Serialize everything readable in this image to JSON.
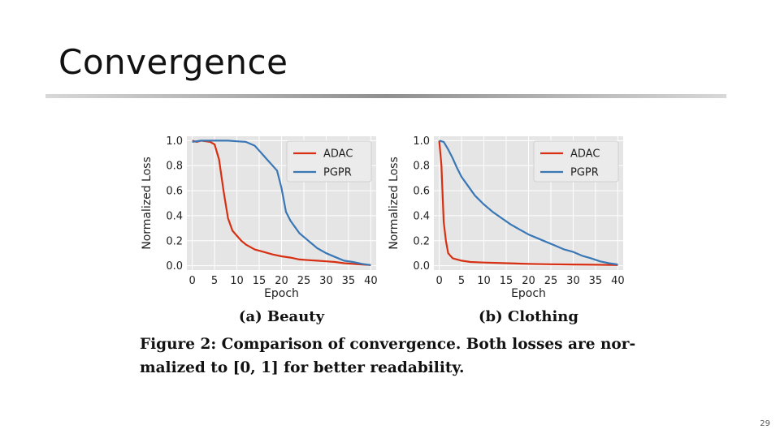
{
  "slide": {
    "title": "Convergence",
    "page_number": "29"
  },
  "caption": {
    "line1": "Figure 2: Comparison of convergence. Both losses are nor-",
    "line2": "malized to [0, 1] for better readability."
  },
  "colors": {
    "adac": "#d62f12",
    "pgpr": "#3a77b5"
  },
  "chart_data": [
    {
      "type": "line",
      "subcaption": "(a) Beauty",
      "xlabel": "Epoch",
      "ylabel": "Normalized Loss",
      "xlim": [
        0,
        40
      ],
      "ylim": [
        0,
        1.0
      ],
      "xticks": [
        "0",
        "5",
        "10",
        "15",
        "20",
        "25",
        "30",
        "35",
        "40"
      ],
      "yticks": [
        "0.0",
        "0.2",
        "0.4",
        "0.6",
        "0.8",
        "1.0"
      ],
      "grid": true,
      "legend": "top-right",
      "series": [
        {
          "name": "ADAC",
          "x": [
            0,
            1,
            2,
            3,
            4,
            5,
            6,
            7,
            8,
            9,
            10,
            11,
            12,
            14,
            16,
            18,
            20,
            22,
            24,
            26,
            28,
            30,
            32,
            34,
            36,
            38,
            40
          ],
          "y": [
            1.0,
            0.99,
            1.0,
            0.995,
            0.99,
            0.97,
            0.85,
            0.6,
            0.38,
            0.28,
            0.24,
            0.2,
            0.17,
            0.13,
            0.11,
            0.09,
            0.075,
            0.065,
            0.05,
            0.045,
            0.04,
            0.035,
            0.03,
            0.02,
            0.015,
            0.01,
            0.005
          ]
        },
        {
          "name": "PGPR",
          "x": [
            0,
            2,
            4,
            6,
            8,
            10,
            12,
            14,
            15,
            16,
            17,
            18,
            19,
            20,
            21,
            22,
            23,
            24,
            26,
            28,
            30,
            32,
            34,
            36,
            38,
            40
          ],
          "y": [
            0.99,
            1.0,
            1.0,
            1.0,
            1.0,
            0.995,
            0.99,
            0.96,
            0.92,
            0.88,
            0.84,
            0.8,
            0.76,
            0.62,
            0.43,
            0.36,
            0.31,
            0.26,
            0.2,
            0.14,
            0.1,
            0.07,
            0.04,
            0.03,
            0.015,
            0.005
          ]
        }
      ]
    },
    {
      "type": "line",
      "subcaption": "(b) Clothing",
      "xlabel": "Epoch",
      "ylabel": "Normalized Loss",
      "xlim": [
        0,
        40
      ],
      "ylim": [
        0,
        1.0
      ],
      "xticks": [
        "0",
        "5",
        "10",
        "15",
        "20",
        "25",
        "30",
        "35",
        "40"
      ],
      "yticks": [
        "0.0",
        "0.2",
        "0.4",
        "0.6",
        "0.8",
        "1.0"
      ],
      "grid": true,
      "legend": "top-right",
      "series": [
        {
          "name": "ADAC",
          "x": [
            0,
            0.5,
            1,
            1.5,
            2,
            2.5,
            3,
            4,
            5,
            7,
            10,
            15,
            20,
            25,
            30,
            35,
            40
          ],
          "y": [
            1.0,
            0.8,
            0.35,
            0.2,
            0.1,
            0.08,
            0.06,
            0.05,
            0.04,
            0.03,
            0.025,
            0.02,
            0.015,
            0.012,
            0.01,
            0.008,
            0.005
          ]
        },
        {
          "name": "PGPR",
          "x": [
            0,
            1,
            2,
            3,
            4,
            5,
            6,
            8,
            10,
            12,
            14,
            16,
            18,
            20,
            22,
            24,
            26,
            28,
            30,
            32,
            34,
            36,
            38,
            40
          ],
          "y": [
            1.0,
            0.99,
            0.93,
            0.86,
            0.78,
            0.71,
            0.66,
            0.56,
            0.49,
            0.43,
            0.38,
            0.33,
            0.29,
            0.25,
            0.22,
            0.19,
            0.16,
            0.13,
            0.11,
            0.08,
            0.06,
            0.035,
            0.02,
            0.01
          ]
        }
      ]
    }
  ]
}
